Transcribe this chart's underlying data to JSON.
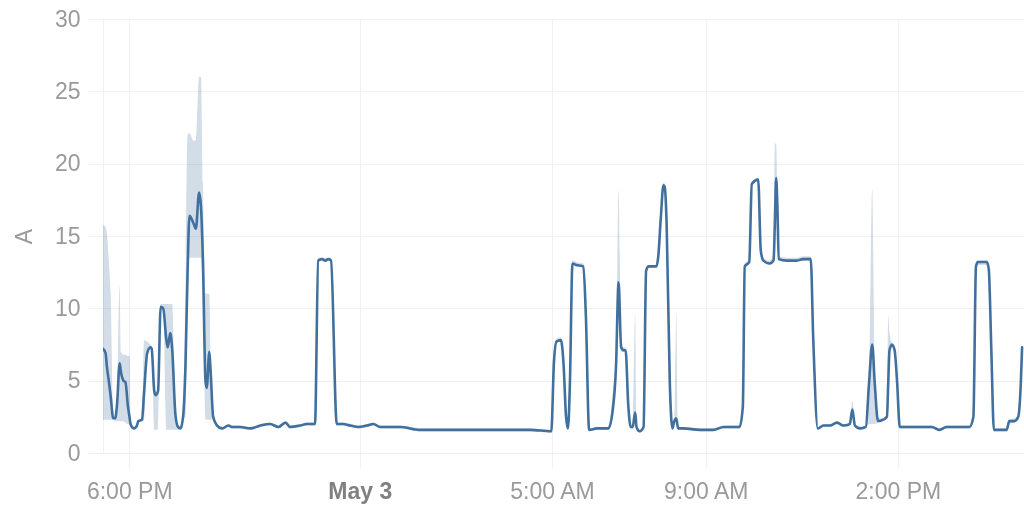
{
  "chart_data": {
    "type": "line",
    "ylabel": "A",
    "x": [
      "--05-02T17:19",
      "--05-02T17:23",
      "--05-02T17:25",
      "--05-02T17:28",
      "--05-02T17:31",
      "--05-02T17:35",
      "--05-02T17:38",
      "--05-02T17:41",
      "--05-02T17:45",
      "--05-02T17:47",
      "--05-02T17:51",
      "--05-02T17:54",
      "--05-02T17:58",
      "--05-02T18:01",
      "--05-02T18:02",
      "--05-02T18:07",
      "--05-02T18:12",
      "--05-02T18:14",
      "--05-02T18:20",
      "--05-02T18:23",
      "--05-02T18:28",
      "--05-02T18:33",
      "--05-02T18:35",
      "--05-02T18:39",
      "--05-02T18:41",
      "--05-02T18:45",
      "--05-02T18:49",
      "--05-02T18:53",
      "--05-02T18:58",
      "--05-02T19:00",
      "--05-02T19:04",
      "--05-02T19:07",
      "--05-02T19:12",
      "--05-02T19:16",
      "--05-02T19:20",
      "--05-02T19:24",
      "--05-02T19:28",
      "--05-02T19:31",
      "--05-02T19:34",
      "--05-02T19:40",
      "--05-02T19:44",
      "--05-02T19:49",
      "--05-02T19:52",
      "--05-02T19:55",
      "--05-02T19:59",
      "--05-02T20:01",
      "--05-02T20:05",
      "--05-02T20:07",
      "--05-02T20:11",
      "--05-02T20:17",
      "--05-02T20:25",
      "--05-02T20:35",
      "--05-02T20:40",
      "--05-02T20:53",
      "--05-02T21:09",
      "--05-02T21:25",
      "--05-02T21:40",
      "--05-02T21:53",
      "--05-02T22:04",
      "--05-02T22:11",
      "--05-02T22:27",
      "--05-02T22:37",
      "--05-02T22:50",
      "--05-02T22:55",
      "--05-02T23:01",
      "--05-02T23:06",
      "--05-02T23:11",
      "--05-02T23:15",
      "--05-02T23:24",
      "--05-02T23:34",
      "--05-02T23:45",
      "--05-02T23:58",
      "--05-03T00:11",
      "--05-03T00:21",
      "--05-03T00:32",
      "--05-03T01:03",
      "--05-03T01:34",
      "--05-03T02:05",
      "--05-03T02:52",
      "--05-03T03:39",
      "--05-03T04:26",
      "--05-03T04:59",
      "--05-03T05:03",
      "--05-03T05:07",
      "--05-03T05:14",
      "--05-03T05:18",
      "--05-03T05:22",
      "--05-03T05:25",
      "--05-03T05:28",
      "--05-03T05:32",
      "--05-03T05:38",
      "--05-03T05:49",
      "--05-03T05:53",
      "--05-03T05:58",
      "--05-03T06:10",
      "--05-03T06:28",
      "--05-03T06:35",
      "--05-03T06:40",
      "--05-03T06:44",
      "--05-03T06:48",
      "--05-03T06:52",
      "--05-03T06:55",
      "--05-03T06:59",
      "--05-03T07:03",
      "--05-03T07:06",
      "--05-03T07:10",
      "--05-03T07:12",
      "--05-03T07:17",
      "--05-03T07:23",
      "--05-03T07:27",
      "--05-03T07:31",
      "--05-03T07:43",
      "--05-03T07:46",
      "--05-03T07:50",
      "--05-03T07:54",
      "--05-03T07:56",
      "--05-03T07:59",
      "--05-03T08:04",
      "--05-03T08:08",
      "--05-03T08:11",
      "--05-03T08:14",
      "--05-03T08:17",
      "--05-03T08:25",
      "--05-03T08:51",
      "--05-03T08:56",
      "--05-03T09:12",
      "--05-03T09:28",
      "--05-03T09:53",
      "--05-03T09:58",
      "--05-03T10:01",
      "--05-03T10:08",
      "--05-03T10:12",
      "--05-03T10:22",
      "--05-03T10:26",
      "--05-03T10:30",
      "--05-03T10:40",
      "--05-03T10:46",
      "--05-03T10:48",
      "--05-03T10:50",
      "--05-03T10:52",
      "--05-03T10:54",
      "--05-03T11:07",
      "--05-03T11:22",
      "--05-03T11:32",
      "--05-03T11:44",
      "--05-03T11:48",
      "--05-03T11:55",
      "--05-03T12:04",
      "--05-03T12:14",
      "--05-03T12:25",
      "--05-03T12:35",
      "--05-03T12:45",
      "--05-03T12:49",
      "--05-03T12:53",
      "--05-03T13:01",
      "--05-03T13:10",
      "--05-03T13:15",
      "--05-03T13:20",
      "--05-03T13:24",
      "--05-03T13:29",
      "--05-03T13:37",
      "--05-03T13:43",
      "--05-03T13:45",
      "--05-03T13:47",
      "--05-03T13:51",
      "--05-03T13:55",
      "--05-03T13:59",
      "--05-03T14:03",
      "--05-03T14:14",
      "--05-03T14:40",
      "--05-03T14:53",
      "--05-03T15:05",
      "--05-03T15:16",
      "--05-03T15:32",
      "--05-03T15:52",
      "--05-03T15:58",
      "--05-03T16:02",
      "--05-03T16:05",
      "--05-03T16:19",
      "--05-03T16:22",
      "--05-03T16:26",
      "--05-03T16:30",
      "--05-03T16:39",
      "--05-03T16:50",
      "--05-03T16:54",
      "--05-03T17:02",
      "--05-03T17:08",
      "--05-03T17:12",
      "--05-03T17:14"
    ],
    "series": [
      {
        "color": "#41709e",
        "values": [
          7.2,
          6.9,
          6.0,
          5.0,
          3.9,
          2.4,
          2.4,
          3.4,
          6.2,
          5.6,
          5.0,
          4.9,
          3.2,
          2.3,
          2.0,
          1.7,
          1.9,
          2.2,
          2.3,
          4.1,
          6.9,
          7.3,
          7.2,
          4.3,
          4.0,
          4.3,
          10.1,
          10.0,
          7.8,
          7.3,
          8.3,
          7.2,
          2.7,
          1.8,
          1.7,
          2.5,
          6.4,
          12.4,
          16.4,
          15.9,
          15.5,
          18.0,
          17.0,
          13.3,
          5.0,
          4.5,
          7.0,
          5.7,
          2.5,
          1.9,
          1.7,
          1.9,
          1.8,
          1.8,
          1.7,
          1.9,
          2.0,
          1.8,
          2.1,
          1.8,
          1.9,
          2.0,
          2.0,
          13.3,
          13.4,
          13.3,
          13.4,
          13.3,
          2.0,
          2.0,
          1.9,
          1.8,
          1.9,
          2.0,
          1.8,
          1.8,
          1.6,
          1.6,
          1.6,
          1.6,
          1.6,
          1.5,
          6.2,
          7.7,
          7.8,
          6.2,
          2.5,
          1.7,
          4.8,
          13.1,
          13.0,
          12.9,
          9.4,
          1.6,
          1.7,
          1.7,
          3.0,
          6.0,
          11.8,
          7.3,
          7.1,
          7.1,
          3.4,
          1.8,
          1.8,
          2.8,
          1.8,
          1.5,
          1.8,
          12.6,
          12.9,
          12.9,
          13.6,
          16.3,
          18.5,
          18.4,
          15.9,
          4.8,
          1.7,
          2.2,
          2.4,
          1.7,
          1.7,
          1.6,
          1.6,
          1.6,
          1.8,
          1.8,
          3.2,
          12.9,
          13.2,
          18.6,
          18.9,
          14.0,
          13.3,
          13.1,
          13.3,
          15.9,
          19.0,
          17.0,
          13.4,
          13.3,
          13.3,
          13.4,
          13.4,
          7.8,
          1.7,
          1.9,
          1.9,
          2.1,
          1.9,
          2.0,
          3.0,
          1.9,
          1.7,
          1.8,
          4.8,
          7.5,
          4.8,
          2.2,
          2.3,
          2.5,
          4.8,
          7.1,
          7.5,
          7.1,
          4.8,
          1.8,
          1.8,
          1.8,
          1.8,
          1.6,
          1.8,
          1.8,
          1.8,
          2.5,
          12.9,
          13.2,
          13.2,
          12.7,
          7.1,
          1.6,
          1.6,
          1.6,
          2.2,
          2.2,
          2.5,
          4.8,
          7.3
        ],
        "lower": [
          2.3,
          2.3,
          2.3,
          2.3,
          2.3,
          2.3,
          2.2,
          2.2,
          2.2,
          2.2,
          2.2,
          2.1,
          2.0,
          2.0,
          1.9,
          1.6,
          1.8,
          2.1,
          2.2,
          2.3,
          6.8,
          7.2,
          7.0,
          1.6,
          1.6,
          1.6,
          9.9,
          9.8,
          1.6,
          1.6,
          1.6,
          1.6,
          1.6,
          1.6,
          1.6,
          2.3,
          2.5,
          12.0,
          13.5,
          13.5,
          13.5,
          13.5,
          13.5,
          11.0,
          2.3,
          2.3,
          2.3,
          2.3,
          2.3,
          1.8,
          1.6,
          1.8,
          1.7,
          1.7,
          1.6,
          1.8,
          1.9,
          1.7,
          2.0,
          1.7,
          1.8,
          1.9,
          1.9,
          13.2,
          13.3,
          13.2,
          13.3,
          13.2,
          1.9,
          1.9,
          1.8,
          1.7,
          1.8,
          1.9,
          1.7,
          1.7,
          1.5,
          1.5,
          1.5,
          1.5,
          1.5,
          1.4,
          6.0,
          7.6,
          7.7,
          6.0,
          2.3,
          1.6,
          4.6,
          13.0,
          12.9,
          12.8,
          9.2,
          1.5,
          1.6,
          1.6,
          2.8,
          5.5,
          11.0,
          7.0,
          7.0,
          7.0,
          3.2,
          1.7,
          1.7,
          2.6,
          1.7,
          1.4,
          1.7,
          12.5,
          12.8,
          12.8,
          13.4,
          16.1,
          18.4,
          18.3,
          15.7,
          4.6,
          1.6,
          2.0,
          2.2,
          1.6,
          1.6,
          1.5,
          1.5,
          1.5,
          1.7,
          1.7,
          3.0,
          12.8,
          13.1,
          18.5,
          18.8,
          13.8,
          13.2,
          13.0,
          13.2,
          15.7,
          18.8,
          16.8,
          13.3,
          13.2,
          13.2,
          13.3,
          13.3,
          7.6,
          1.6,
          1.8,
          1.8,
          2.0,
          1.8,
          1.9,
          2.8,
          1.8,
          1.6,
          1.7,
          2.0,
          2.0,
          2.0,
          2.1,
          2.2,
          2.4,
          4.6,
          7.0,
          7.4,
          7.0,
          4.6,
          1.7,
          1.7,
          1.7,
          1.7,
          1.5,
          1.7,
          1.7,
          1.7,
          2.3,
          12.8,
          13.0,
          13.0,
          12.5,
          7.0,
          1.5,
          1.5,
          1.5,
          2.0,
          2.1,
          2.3,
          4.6,
          7.2
        ],
        "upper": [
          15.8,
          15.6,
          15.2,
          13.3,
          11.0,
          2.5,
          2.6,
          3.6,
          11.6,
          7.0,
          6.8,
          6.8,
          6.7,
          6.7,
          2.1,
          1.8,
          2.0,
          2.3,
          2.4,
          7.8,
          7.7,
          7.5,
          7.4,
          4.4,
          4.1,
          4.5,
          10.3,
          10.3,
          10.3,
          10.3,
          10.3,
          10.3,
          3.0,
          2.0,
          1.8,
          2.7,
          12.0,
          22.0,
          22.1,
          21.6,
          21.6,
          26.0,
          26.0,
          18.6,
          11.0,
          11.0,
          11.0,
          6.0,
          2.6,
          2.0,
          1.8,
          2.0,
          1.9,
          1.9,
          1.8,
          2.0,
          2.1,
          1.9,
          2.2,
          1.9,
          2.0,
          2.1,
          2.1,
          13.5,
          13.5,
          13.5,
          13.5,
          13.5,
          2.1,
          2.1,
          2.0,
          1.9,
          2.0,
          2.1,
          1.9,
          1.9,
          1.7,
          1.7,
          1.7,
          1.7,
          1.7,
          1.6,
          6.4,
          7.9,
          8.0,
          6.4,
          2.7,
          1.8,
          5.0,
          13.3,
          13.2,
          13.1,
          9.6,
          1.7,
          1.8,
          1.8,
          4.3,
          7.0,
          18.2,
          8.0,
          7.3,
          7.3,
          3.6,
          1.9,
          1.9,
          9.6,
          1.9,
          1.6,
          1.9,
          12.8,
          13.0,
          13.0,
          13.8,
          16.5,
          18.7,
          18.6,
          16.1,
          5.0,
          1.8,
          2.3,
          9.6,
          1.8,
          1.8,
          1.7,
          1.7,
          1.7,
          1.9,
          1.9,
          3.4,
          13.1,
          13.4,
          18.8,
          19.0,
          14.2,
          13.5,
          13.3,
          14.0,
          21.4,
          21.4,
          17.2,
          13.6,
          13.5,
          13.5,
          13.6,
          13.6,
          8.0,
          1.8,
          2.0,
          2.0,
          2.2,
          2.0,
          2.1,
          3.6,
          2.0,
          1.8,
          1.9,
          5.0,
          18.3,
          5.0,
          2.4,
          2.4,
          2.6,
          9.5,
          8.3,
          7.6,
          7.3,
          5.0,
          1.9,
          1.9,
          1.9,
          1.9,
          1.7,
          1.9,
          1.9,
          1.9,
          2.7,
          13.1,
          13.3,
          13.3,
          12.8,
          7.3,
          1.7,
          1.7,
          1.7,
          2.3,
          2.4,
          2.6,
          5.0,
          7.4
        ]
      }
    ],
    "xlim": [
      "--05-02T17:19",
      "--05-03T17:17"
    ],
    "xticks": [
      {
        "value": "--05-02T18:00",
        "label": "6:00 PM"
      },
      {
        "value": "--05-03T00:00",
        "label": "May 3"
      },
      {
        "value": "--05-03T05:00",
        "label": "5:00 AM"
      },
      {
        "value": "--05-03T09:00",
        "label": "9:00 AM"
      },
      {
        "value": "--05-03T14:00",
        "label": "2:00 PM"
      }
    ],
    "ylim": [
      0,
      30
    ],
    "yticks": [
      0,
      5,
      10,
      15,
      20,
      25,
      30
    ],
    "grid": true
  }
}
